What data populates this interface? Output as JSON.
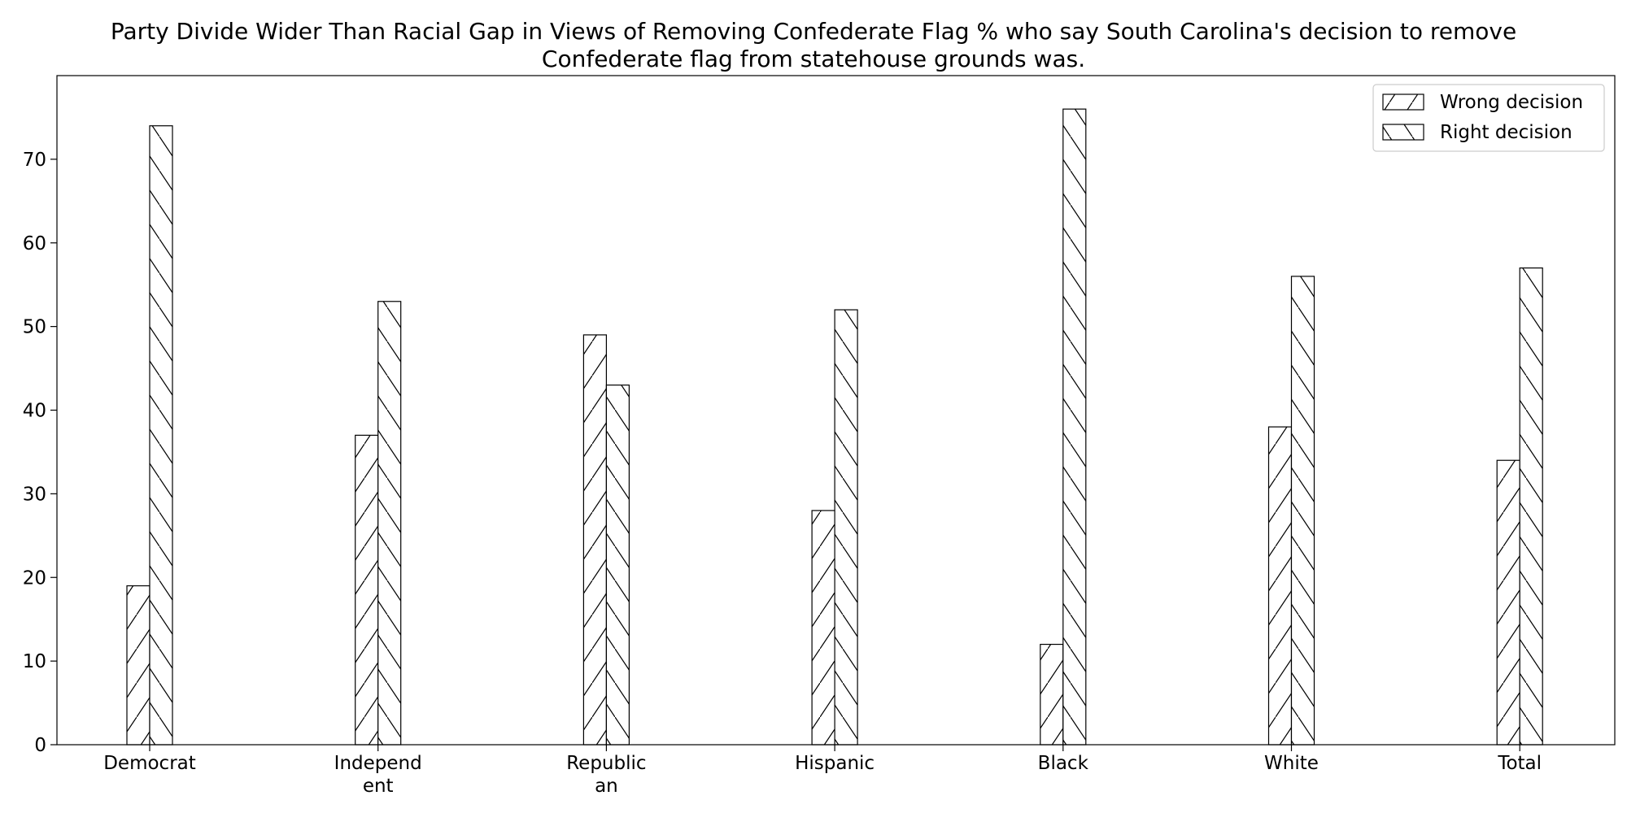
{
  "chart_data": {
    "type": "bar",
    "title": "Party Divide Wider Than Racial Gap in Views of Removing Confederate Flag % who say South Carolina's decision to remove Confederate flag from statehouse grounds was.",
    "title_lines": [
      "Party Divide Wider Than Racial Gap in Views of Removing Confederate Flag % who say South Carolina's decision to remove",
      "Confederate flag from statehouse grounds was."
    ],
    "categories": [
      "Democrat",
      "Independent",
      "Republican",
      "Hispanic",
      "Black",
      "White",
      "Total"
    ],
    "category_label_lines": [
      [
        "Democrat"
      ],
      [
        "Independ",
        "ent"
      ],
      [
        "Republic",
        "an"
      ],
      [
        "Hispanic"
      ],
      [
        "Black"
      ],
      [
        "White"
      ],
      [
        "Total"
      ]
    ],
    "series": [
      {
        "name": "Wrong decision",
        "hatch": "forward-slash",
        "values": [
          19,
          37,
          49,
          28,
          12,
          38,
          34
        ]
      },
      {
        "name": "Right decision",
        "hatch": "back-slash",
        "values": [
          74,
          53,
          43,
          52,
          76,
          56,
          57
        ]
      }
    ],
    "ylim": [
      0,
      80
    ],
    "yticks": [
      "0",
      "10",
      "20",
      "30",
      "40",
      "50",
      "60",
      "70"
    ],
    "xlabel": "",
    "ylabel": "",
    "legend_position": "top-right",
    "grid": false,
    "colors": {
      "bar_fill": "#ffffff",
      "bar_edge": "#000000",
      "axis": "#000000"
    }
  }
}
